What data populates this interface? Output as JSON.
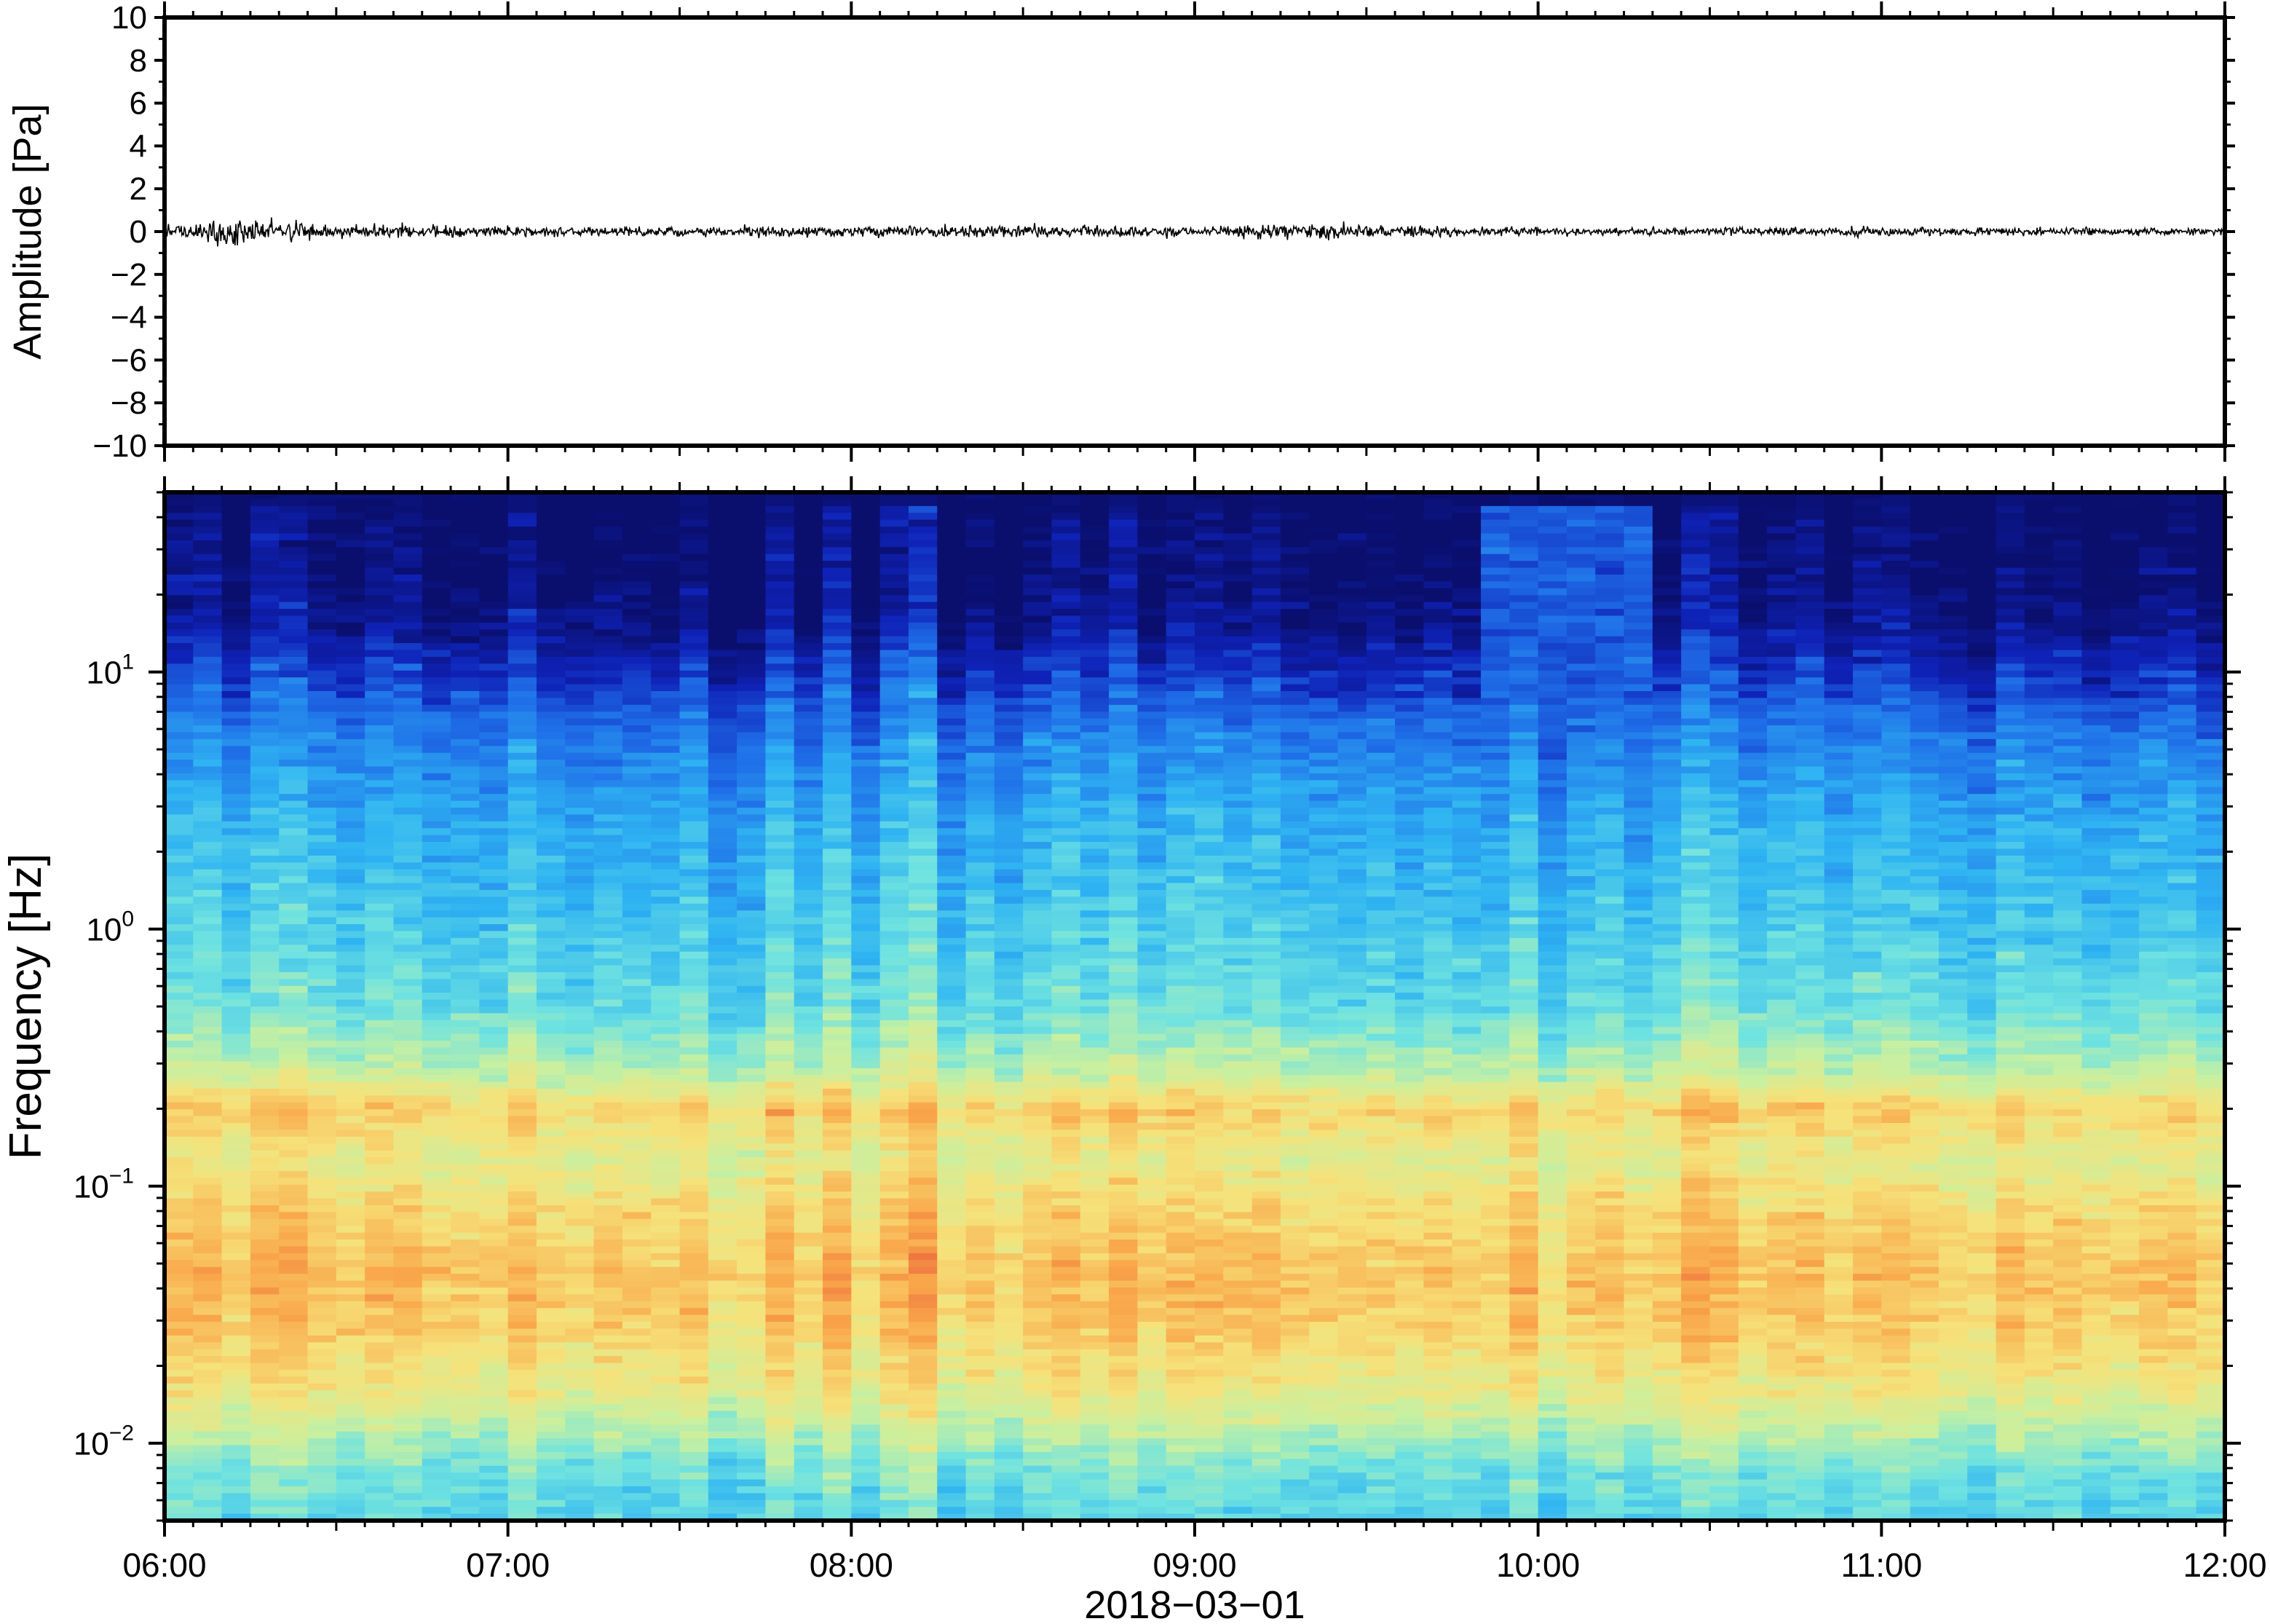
{
  "chart_data": [
    {
      "type": "line",
      "title": "",
      "ylabel": "Amplitude [Pa]",
      "ylim": [
        -10,
        10
      ],
      "yticks": [
        "10",
        "8",
        "6",
        "4",
        "2",
        "0",
        "−2",
        "−4",
        "−6",
        "−8",
        "−10"
      ],
      "ytick_values": [
        10,
        8,
        6,
        4,
        2,
        0,
        -2,
        -4,
        -6,
        -8,
        -10
      ],
      "xlim": [
        "2018-03-01 06:00",
        "2018-03-01 12:00"
      ],
      "series": [
        {
          "approx_envelope_pa": [
            {
              "t": "06:00",
              "amp": 0.35
            },
            {
              "t": "06:10",
              "amp": 0.9
            },
            {
              "t": "06:30",
              "amp": 0.45
            },
            {
              "t": "07:00",
              "amp": 0.3
            },
            {
              "t": "08:00",
              "amp": 0.35
            },
            {
              "t": "08:20",
              "amp": 0.4
            },
            {
              "t": "09:00",
              "amp": 0.3
            },
            {
              "t": "09:20",
              "amp": 0.5
            },
            {
              "t": "10:00",
              "amp": 0.25
            },
            {
              "t": "11:00",
              "amp": 0.3
            },
            {
              "t": "12:00",
              "amp": 0.2
            }
          ],
          "color": "#000000"
        }
      ]
    },
    {
      "type": "heatmap",
      "title": "",
      "ylabel": "Frequency [Hz]",
      "yscale": "log",
      "ylim": [
        0.005,
        50
      ],
      "yticks": [
        {
          "value": 10,
          "base": "10",
          "exp": "1"
        },
        {
          "value": 1,
          "base": "10",
          "exp": "0"
        },
        {
          "value": 0.1,
          "base": "10",
          "exp": "−1"
        },
        {
          "value": 0.01,
          "base": "10",
          "exp": "−2"
        }
      ],
      "xlabel": "2018−03−01",
      "xticks": [
        "06:00",
        "07:00",
        "08:00",
        "09:00",
        "10:00",
        "11:00",
        "12:00"
      ],
      "xlim": [
        "06:00",
        "12:00"
      ],
      "colormap": [
        "#0a0f6e",
        "#0f22b8",
        "#1f6ee8",
        "#2fb4f2",
        "#6fe3e0",
        "#c8f0a0",
        "#f6e27a",
        "#f9a64a",
        "#e8583a"
      ],
      "features": {
        "hot_band_hz": [
          0.03,
          0.2
        ],
        "upper_cutoff_hz_typical": 15,
        "broadband_burst": {
          "start": "09:50",
          "end": "10:20",
          "max_hz": 45
        }
      }
    }
  ],
  "colors": {
    "axis": "#000000",
    "background": "#ffffff",
    "trace": "#000000"
  }
}
